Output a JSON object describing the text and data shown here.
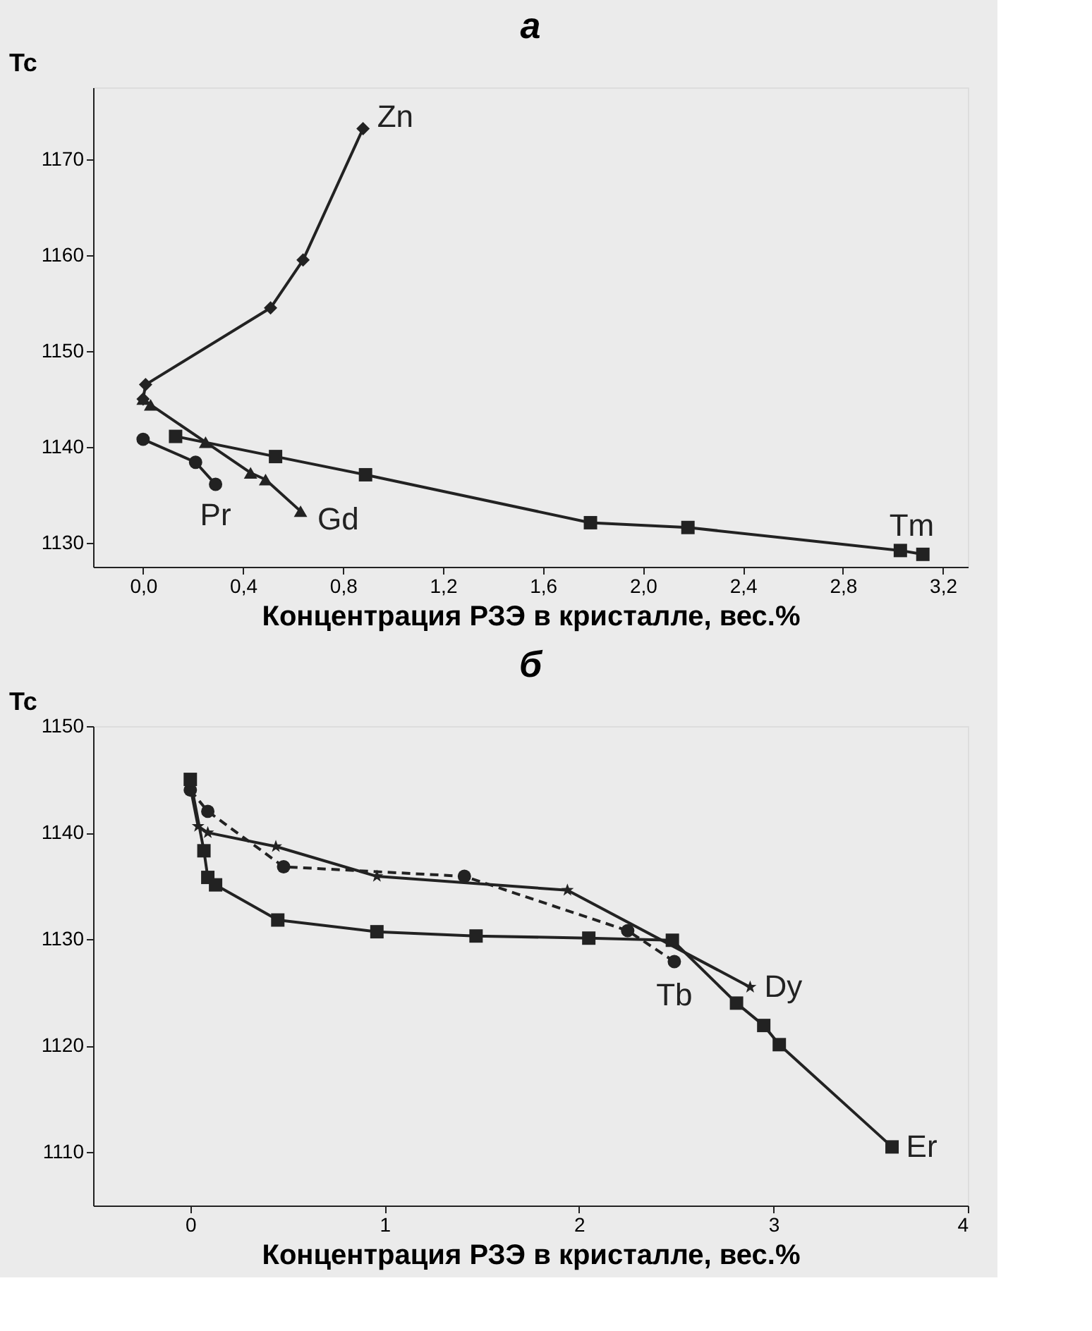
{
  "chart_data": [
    {
      "type": "line",
      "title": "а",
      "xlabel": "Концентрация РЗЭ в кристалле, вес.%",
      "ylabel": "Тс",
      "xlim": [
        -0.2,
        3.3
      ],
      "ylim": [
        1127.5,
        1177.5
      ],
      "xticks": [
        {
          "value": 0.0,
          "label": "0,0"
        },
        {
          "value": 0.4,
          "label": "0,4"
        },
        {
          "value": 0.8,
          "label": "0,8"
        },
        {
          "value": 1.2,
          "label": "1,2"
        },
        {
          "value": 1.6,
          "label": "1,6"
        },
        {
          "value": 2.0,
          "label": "2,0"
        },
        {
          "value": 2.4,
          "label": "2,4"
        },
        {
          "value": 2.8,
          "label": "2,8"
        },
        {
          "value": 3.2,
          "label": "3,2"
        }
      ],
      "yticks": [
        1130,
        1140,
        1150,
        1160,
        1170
      ],
      "grid": false,
      "legend": false,
      "line_style": "solid",
      "series": [
        {
          "name": "Zn",
          "color": "#222222",
          "marker": "diamond",
          "x": [
            0.0,
            0.01,
            0.51,
            0.64,
            0.88
          ],
          "values": [
            1145,
            1146.5,
            1154.5,
            1159.5,
            1173.2
          ]
        },
        {
          "name": "Pr",
          "color": "#222222",
          "marker": "circle",
          "x": [
            0.0,
            0.21,
            0.29
          ],
          "values": [
            1140.8,
            1138.4,
            1136.1
          ]
        },
        {
          "name": "Gd",
          "color": "#222222",
          "marker": "triangle",
          "x": [
            0.0,
            0.03,
            0.25,
            0.43,
            0.49,
            0.63
          ],
          "values": [
            1145,
            1144.4,
            1140.5,
            1137.3,
            1136.6,
            1133.3
          ]
        },
        {
          "name": "Tm",
          "color": "#222222",
          "marker": "square",
          "x": [
            0.13,
            0.53,
            0.89,
            1.79,
            2.18,
            3.03,
            3.12
          ],
          "values": [
            1141.1,
            1139,
            1137.1,
            1132.1,
            1131.6,
            1129.2,
            1128.8
          ]
        }
      ]
    },
    {
      "type": "line",
      "title": "б",
      "xlabel": "Концентрация РЗЭ в кристалле, вес.%",
      "ylabel": "Тс",
      "xlim": [
        -0.5,
        4
      ],
      "ylim": [
        1105,
        1150
      ],
      "xticks": [
        0,
        1,
        2,
        3,
        4
      ],
      "yticks": [
        1110,
        1120,
        1130,
        1140,
        1150
      ],
      "grid": false,
      "legend": false,
      "series": [
        {
          "name": "Tb",
          "color": "#222222",
          "marker": "circle",
          "line_style": "dashed",
          "x": [
            0.0,
            0.09,
            0.48,
            1.41,
            2.25,
            2.49
          ],
          "values": [
            1144,
            1142,
            1136.8,
            1135.9,
            1130.8,
            1127.9
          ]
        },
        {
          "name": "Dy",
          "color": "#222222",
          "marker": "star",
          "line_style": "solid",
          "x": [
            0.0,
            0.04,
            0.09,
            0.44,
            0.96,
            1.94,
            2.88
          ],
          "values": [
            1144.3,
            1140.6,
            1140,
            1138.7,
            1135.9,
            1134.6,
            1125.5
          ]
        },
        {
          "name": "Er",
          "color": "#222222",
          "marker": "square",
          "line_style": "solid",
          "x": [
            0.0,
            0.07,
            0.09,
            0.13,
            0.45,
            0.96,
            1.47,
            2.05,
            2.48,
            2.81,
            2.95,
            3.03,
            3.61
          ],
          "values": [
            1145,
            1138.3,
            1135.8,
            1135.1,
            1131.8,
            1130.7,
            1130.3,
            1130.1,
            1129.9,
            1124,
            1121.9,
            1120.1,
            1110.5
          ]
        }
      ]
    }
  ]
}
